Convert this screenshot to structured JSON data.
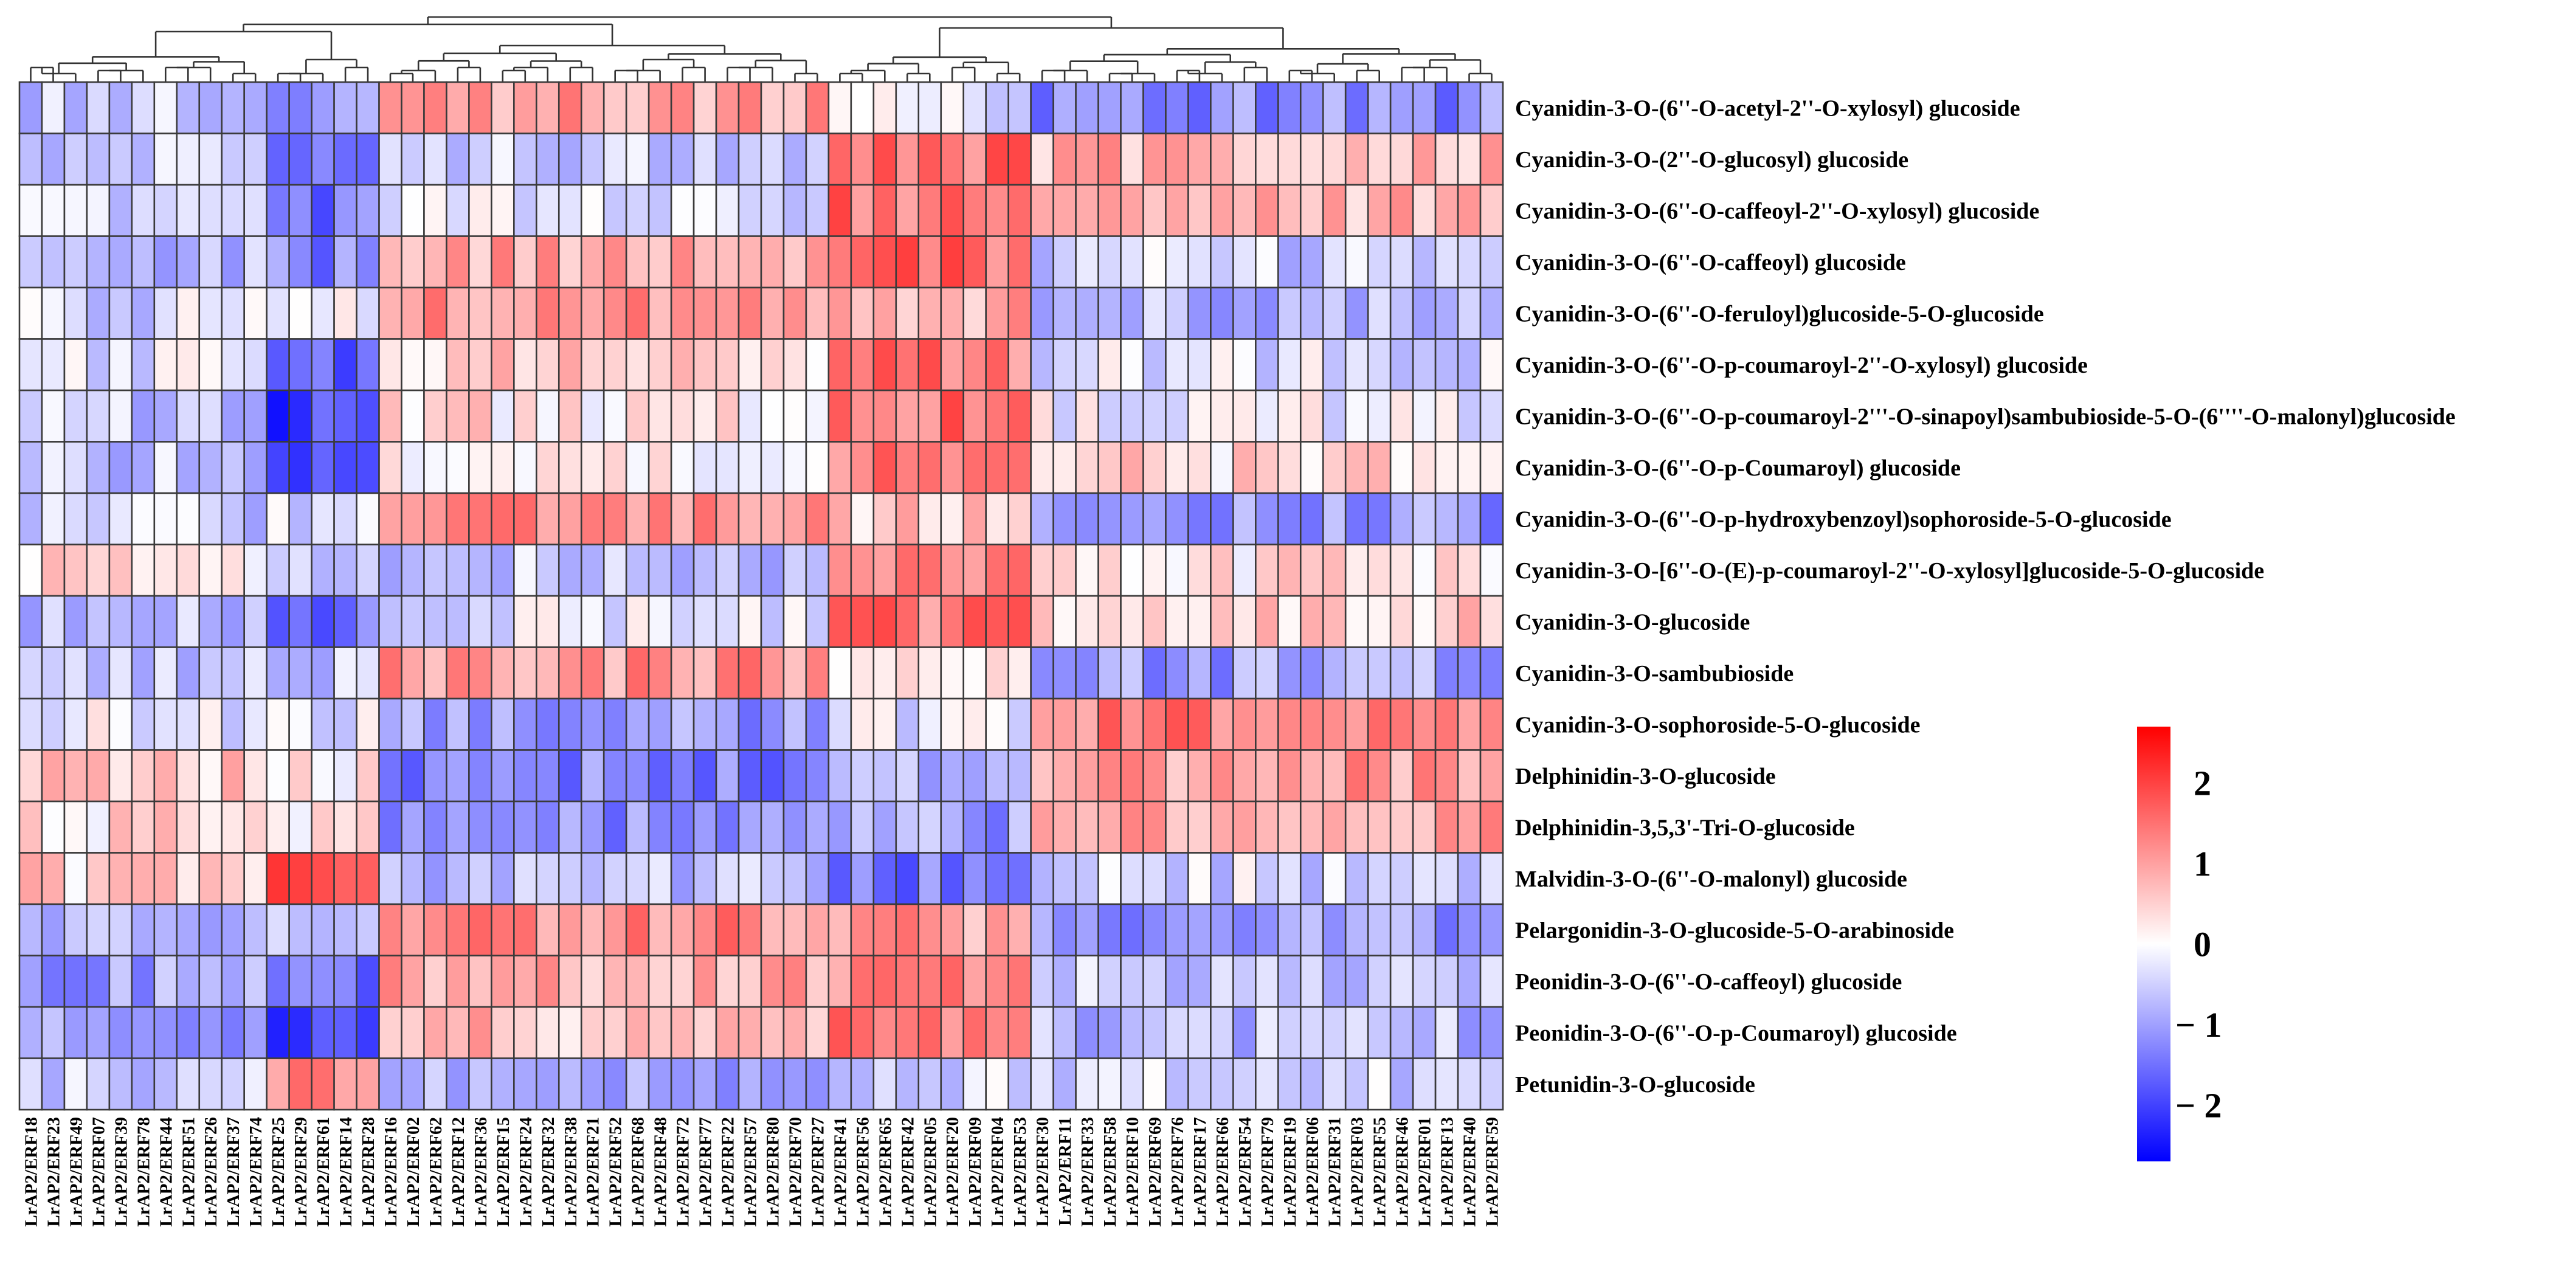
{
  "chart_data": {
    "type": "heatmap",
    "colorscale": {
      "low": "#0000ff",
      "mid": "#ffffff",
      "high": "#ff0000",
      "min": -2.7,
      "max": 2.7
    },
    "legend": {
      "ticks": [
        -2,
        -1,
        0,
        1,
        2
      ],
      "tick_labels": [
        "− 2",
        "− 1",
        "0",
        "1",
        "2"
      ],
      "position": "right"
    },
    "columns": [
      "LrAP2/ERF18",
      "LrAP2/ERF23",
      "LrAP2/ERF49",
      "LrAP2/ERF07",
      "LrAP2/ERF39",
      "LrAP2/ERF78",
      "LrAP2/ERF44",
      "LrAP2/ERF51",
      "LrAP2/ERF26",
      "LrAP2/ERF37",
      "LrAP2/ERF74",
      "LrAP2/ERF25",
      "LrAP2/ERF29",
      "LrAP2/ERF61",
      "LrAP2/ERF14",
      "LrAP2/ERF28",
      "LrAP2/ERF16",
      "LrAP2/ERF02",
      "LrAP2/ERF62",
      "LrAP2/ERF12",
      "LrAP2/ERF36",
      "LrAP2/ERF15",
      "LrAP2/ERF24",
      "LrAP2/ERF32",
      "LrAP2/ERF38",
      "LrAP2/ERF21",
      "LrAP2/ERF52",
      "LrAP2/ERF68",
      "LrAP2/ERF48",
      "LrAP2/ERF72",
      "LrAP2/ERF77",
      "LrAP2/ERF22",
      "LrAP2/ERF57",
      "LrAP2/ERF80",
      "LrAP2/ERF70",
      "LrAP2/ERF27",
      "LrAP2/ERF41",
      "LrAP2/ERF56",
      "LrAP2/ERF65",
      "LrAP2/ERF42",
      "LrAP2/ERF05",
      "LrAP2/ERF20",
      "LrAP2/ERF09",
      "LrAP2/ERF04",
      "LrAP2/ERF53",
      "LrAP2/ERF30",
      "LrAP2/ERF11",
      "LrAP2/ERF33",
      "LrAP2/ERF58",
      "LrAP2/ERF10",
      "LrAP2/ERF69",
      "LrAP2/ERF76",
      "LrAP2/ERF17",
      "LrAP2/ERF66",
      "LrAP2/ERF54",
      "LrAP2/ERF79",
      "LrAP2/ERF19",
      "LrAP2/ERF06",
      "LrAP2/ERF31",
      "LrAP2/ERF03",
      "LrAP2/ERF55",
      "LrAP2/ERF46",
      "LrAP2/ERF01",
      "LrAP2/ERF13",
      "LrAP2/ERF40",
      "LrAP2/ERF59"
    ],
    "rows": [
      "Cyanidin-3-O-(6''-O-acetyl-2''-O-xylosyl) glucoside",
      "Cyanidin-3-O-(2''-O-glucosyl) glucoside",
      "Cyanidin-3-O-(6''-O-caffeoyl-2''-O-xylosyl) glucoside",
      "Cyanidin-3-O-(6''-O-caffeoyl) glucoside",
      "Cyanidin-3-O-(6''-O-feruloyl)glucoside-5-O-glucoside",
      "Cyanidin-3-O-(6''-O-p-coumaroyl-2''-O-xylosyl) glucoside",
      "Cyanidin-3-O-(6''-O-p-coumaroyl-2'''-O-sinapoyl)sambubioside-5-O-(6''''-O-malonyl)glucoside",
      "Cyanidin-3-O-(6''-O-p-Coumaroyl) glucoside",
      "Cyanidin-3-O-(6''-O-p-hydroxybenzoyl)sophoroside-5-O-glucoside",
      "Cyanidin-3-O-[6''-O-(E)-p-coumaroyl-2''-O-xylosyl]glucoside-5-O-glucoside",
      "Cyanidin-3-O-glucoside",
      "Cyanidin-3-O-sambubioside",
      "Cyanidin-3-O-sophoroside-5-O-glucoside",
      "Delphinidin-3-O-glucoside",
      "Delphinidin-3,5,3'-Tri-O-glucoside",
      "Malvidin-3-O-(6''-O-malonyl) glucoside",
      "Pelargonidin-3-O-glucoside-5-O-arabinoside",
      "Peonidin-3-O-(6''-O-caffeoyl) glucoside",
      "Peonidin-3-O-(6''-O-p-Coumaroyl) glucoside",
      "Petunidin-3-O-glucoside"
    ],
    "row_blocks": [
      [
        -0.5,
        -1.0,
        1.0,
        -0.3,
        -1.2
      ],
      [
        -0.5,
        -1.5,
        -0.4,
        1.5,
        0.8
      ],
      [
        -0.4,
        -1.4,
        -0.3,
        1.5,
        0.7
      ],
      [
        -0.8,
        -1.3,
        0.9,
        1.5,
        -0.5
      ],
      [
        -0.4,
        -0.1,
        1.1,
        0.9,
        -0.8
      ],
      [
        -0.3,
        -1.8,
        0.5,
        1.4,
        -0.3
      ],
      [
        -0.6,
        -2.0,
        0.3,
        1.5,
        -0.1
      ],
      [
        -0.6,
        -2.0,
        0.2,
        1.4,
        0.4
      ],
      [
        -0.5,
        -0.3,
        1.1,
        0.6,
        -1.1
      ],
      [
        0.3,
        -0.6,
        -0.6,
        1.3,
        0.3
      ],
      [
        -0.6,
        -1.5,
        -0.3,
        1.4,
        0.6
      ],
      [
        -0.7,
        -0.5,
        1.1,
        0.5,
        -1.0
      ],
      [
        -0.2,
        -0.3,
        -1.1,
        -0.3,
        1.4
      ],
      [
        0.5,
        0.3,
        -1.3,
        -0.7,
        1.0
      ],
      [
        0.4,
        0.2,
        -1.2,
        -1.0,
        1.0
      ],
      [
        0.5,
        2.0,
        -0.6,
        -1.4,
        -0.4
      ],
      [
        -0.7,
        -0.8,
        1.2,
        1.0,
        -1.0
      ],
      [
        -1.0,
        -1.4,
        0.9,
        1.3,
        -0.6
      ],
      [
        -1.1,
        -1.9,
        0.7,
        1.3,
        -0.7
      ],
      [
        -0.6,
        1.2,
        -0.8,
        -0.4,
        -0.5
      ]
    ],
    "title": "",
    "xlabel": "",
    "ylabel": ""
  }
}
